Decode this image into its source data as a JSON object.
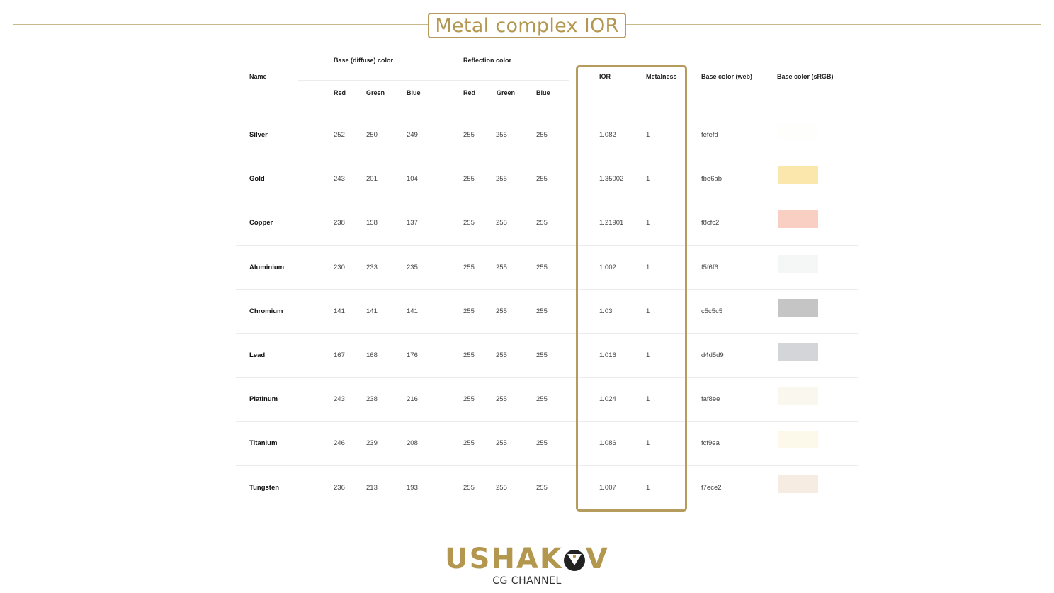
{
  "title": "Metal complex IOR",
  "headers": {
    "name": "Name",
    "base_group": "Base (diffuse) color",
    "reflection_group": "Reflection color",
    "red": "Red",
    "green": "Green",
    "blue": "Blue",
    "ior": "IOR",
    "metalness": "Metalness",
    "base_web": "Base color (web)",
    "base_srgb": "Base color (sRGB)"
  },
  "rows": [
    {
      "name": "Silver",
      "r": "252",
      "g": "250",
      "b": "249",
      "rr": "255",
      "rg": "255",
      "rb": "255",
      "ior": "1.082",
      "metal": "1",
      "web": "fefefd",
      "color": "#fefefd"
    },
    {
      "name": "Gold",
      "r": "243",
      "g": "201",
      "b": "104",
      "rr": "255",
      "rg": "255",
      "rb": "255",
      "ior": "1.35002",
      "metal": "1",
      "web": "fbe6ab",
      "color": "#fbe6ab"
    },
    {
      "name": "Copper",
      "r": "238",
      "g": "158",
      "b": "137",
      "rr": "255",
      "rg": "255",
      "rb": "255",
      "ior": "1.21901",
      "metal": "1",
      "web": "f8cfc2",
      "color": "#f8cfc2"
    },
    {
      "name": "Aluminium",
      "r": "230",
      "g": "233",
      "b": "235",
      "rr": "255",
      "rg": "255",
      "rb": "255",
      "ior": "1.002",
      "metal": "1",
      "web": "f5f6f6",
      "color": "#f5f6f6"
    },
    {
      "name": "Chromium",
      "r": "141",
      "g": "141",
      "b": "141",
      "rr": "255",
      "rg": "255",
      "rb": "255",
      "ior": "1.03",
      "metal": "1",
      "web": "c5c5c5",
      "color": "#c5c5c5"
    },
    {
      "name": "Lead",
      "r": "167",
      "g": "168",
      "b": "176",
      "rr": "255",
      "rg": "255",
      "rb": "255",
      "ior": "1.016",
      "metal": "1",
      "web": "d4d5d9",
      "color": "#d4d5d9"
    },
    {
      "name": "Platinum",
      "r": "243",
      "g": "238",
      "b": "216",
      "rr": "255",
      "rg": "255",
      "rb": "255",
      "ior": "1.024",
      "metal": "1",
      "web": "faf8ee",
      "color": "#faf8ee"
    },
    {
      "name": "Titanium",
      "r": "246",
      "g": "239",
      "b": "208",
      "rr": "255",
      "rg": "255",
      "rb": "255",
      "ior": "1.086",
      "metal": "1",
      "web": "fcf9ea",
      "color": "#fcf9ea"
    },
    {
      "name": "Tungsten",
      "r": "236",
      "g": "213",
      "b": "193",
      "rr": "255",
      "rg": "255",
      "rb": "255",
      "ior": "1.007",
      "metal": "1",
      "web": "f7ece2",
      "color": "#f7ece2"
    }
  ],
  "logo": {
    "brand_left": "USHAK",
    "brand_right": "V",
    "subtitle": "CG CHANNEL"
  },
  "colors": {
    "accent": "#b3974f",
    "frame": "#b59c5c"
  }
}
